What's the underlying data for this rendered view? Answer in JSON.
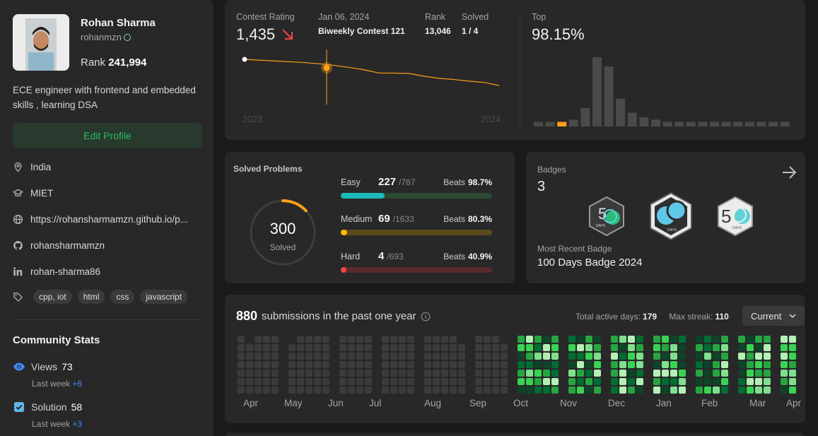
{
  "profile": {
    "name": "Rohan Sharma",
    "username": "rohanmzn",
    "rank_label": "Rank",
    "rank_value": "241,994",
    "bio": "ECE engineer with frontend and embedded skills , learning DSA",
    "edit_label": "Edit Profile",
    "location": "India",
    "school": "MIET",
    "website": "https://rohansharmamzn.github.io/p...",
    "github": "rohansharmamzn",
    "linkedin": "rohan-sharma86",
    "tags": [
      "cpp, iot",
      "html",
      "css",
      "javascript"
    ]
  },
  "community": {
    "title": "Community Stats",
    "views_label": "Views",
    "views_value": "73",
    "views_sub": "Last week",
    "views_delta": "+6",
    "solution_label": "Solution",
    "solution_value": "58",
    "solution_sub": "Last week",
    "solution_delta": "+3"
  },
  "contest": {
    "rating_label": "Contest Rating",
    "rating_value": "1,435",
    "date": "Jan 06, 2024",
    "contest_name": "Biweekly Contest 121",
    "rank_label": "Rank",
    "rank_value": "13,046",
    "solved_label": "Solved",
    "solved_value": "1 / 4",
    "year_start": "2023",
    "year_end": "2024",
    "top_label": "Top",
    "top_value": "98.15%",
    "accent": "#ffa116",
    "histogram": [
      2,
      2,
      2,
      3,
      8,
      30,
      26,
      12,
      6,
      4,
      3,
      2,
      2,
      2,
      2,
      2,
      2,
      2,
      2,
      2,
      2,
      2
    ],
    "histogram_highlight": 2,
    "rating_series": [
      1500,
      1498,
      1496,
      1494,
      1492,
      1489,
      1485,
      1480,
      1474,
      1466,
      1466,
      1465,
      1458,
      1453,
      1450,
      1446,
      1443,
      1435
    ]
  },
  "solved": {
    "title": "Solved Problems",
    "total": "300",
    "total_label": "Solved",
    "easy_label": "Easy",
    "easy_count": "227",
    "easy_total": "/787",
    "easy_beats_label": "Beats",
    "easy_beats": "98.7%",
    "easy_frac": 0.288,
    "medium_label": "Medium",
    "medium_count": "69",
    "medium_total": "/1633",
    "medium_beats_label": "Beats",
    "medium_beats": "80.3%",
    "medium_frac": 0.042,
    "hard_label": "Hard",
    "hard_count": "4",
    "hard_total": "/693",
    "hard_beats_label": "Beats",
    "hard_beats": "40.9%",
    "hard_frac": 0.006
  },
  "badges": {
    "title": "Badges",
    "count": "3",
    "recent_label": "Most Recent Badge",
    "recent_name": "100 Days Badge 2024",
    "badge_days": "DAYS",
    "badge_50": "5",
    "badge_100": "1"
  },
  "submissions": {
    "count": "880",
    "text": "submissions in the past one year",
    "active_label": "Total active days:",
    "active_value": "179",
    "streak_label": "Max streak:",
    "streak_value": "110",
    "dropdown": "Current",
    "months": [
      "Apr",
      "May",
      "Jun",
      "Jul",
      "Aug",
      "Sep",
      "Oct",
      "Nov",
      "Dec",
      "Jan",
      "Feb",
      "Mar",
      "Apr"
    ]
  }
}
